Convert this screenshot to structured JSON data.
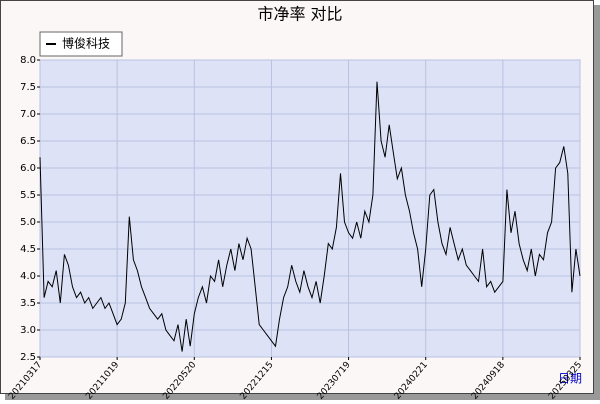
{
  "chart_data": {
    "type": "line",
    "title": "市净率  对比",
    "x_label": "日期",
    "categories": [
      "20210317",
      null,
      null,
      null,
      null,
      null,
      null,
      null,
      null,
      null,
      null,
      null,
      null,
      null,
      null,
      null,
      null,
      null,
      null,
      "20211019",
      null,
      null,
      null,
      null,
      null,
      null,
      null,
      null,
      null,
      null,
      null,
      null,
      null,
      null,
      null,
      null,
      null,
      null,
      "20220520",
      null,
      null,
      null,
      null,
      null,
      null,
      null,
      null,
      null,
      null,
      null,
      null,
      null,
      null,
      null,
      null,
      null,
      null,
      "20221215",
      null,
      null,
      null,
      null,
      null,
      null,
      null,
      null,
      null,
      null,
      null,
      null,
      null,
      null,
      null,
      null,
      null,
      null,
      "20230719",
      null,
      null,
      null,
      null,
      null,
      null,
      null,
      null,
      null,
      null,
      null,
      null,
      null,
      null,
      null,
      null,
      null,
      null,
      "20240221",
      null,
      null,
      null,
      null,
      null,
      null,
      null,
      null,
      null,
      null,
      null,
      null,
      null,
      null,
      null,
      null,
      null,
      null,
      "20240918",
      null,
      null,
      null,
      null,
      null,
      null,
      null,
      null,
      null,
      null,
      null,
      null,
      null,
      null,
      null,
      null,
      null,
      null,
      "20250325"
    ],
    "series": [
      {
        "name": "博俊科技",
        "color": "#000000",
        "values": [
          6.2,
          3.6,
          3.9,
          3.8,
          4.1,
          3.5,
          4.4,
          4.2,
          3.8,
          3.6,
          3.7,
          3.5,
          3.6,
          3.4,
          3.5,
          3.6,
          3.4,
          3.5,
          3.3,
          3.1,
          3.2,
          3.5,
          5.1,
          4.3,
          4.1,
          3.8,
          3.6,
          3.4,
          3.3,
          3.2,
          3.3,
          3.0,
          2.9,
          2.8,
          3.1,
          2.6,
          3.2,
          2.7,
          3.3,
          3.6,
          3.8,
          3.5,
          4.0,
          3.9,
          4.3,
          3.8,
          4.2,
          4.5,
          4.1,
          4.6,
          4.3,
          4.7,
          4.5,
          3.8,
          3.1,
          3.0,
          2.9,
          2.8,
          2.7,
          3.2,
          3.6,
          3.8,
          4.2,
          3.9,
          3.7,
          4.1,
          3.8,
          3.6,
          3.9,
          3.5,
          4.0,
          4.6,
          4.5,
          4.9,
          5.9,
          5.0,
          4.8,
          4.7,
          5.0,
          4.7,
          5.2,
          5.0,
          5.5,
          7.6,
          6.5,
          6.2,
          6.8,
          6.3,
          5.8,
          6.0,
          5.5,
          5.2,
          4.8,
          4.5,
          3.8,
          4.5,
          5.5,
          5.6,
          5.0,
          4.6,
          4.4,
          4.9,
          4.6,
          4.3,
          4.5,
          4.2,
          4.1,
          4.0,
          3.9,
          4.5,
          3.8,
          3.9,
          3.7,
          3.8,
          3.9,
          5.6,
          4.8,
          5.2,
          4.6,
          4.3,
          4.1,
          4.5,
          4.0,
          4.4,
          4.3,
          4.8,
          5.0,
          6.0,
          6.1,
          6.4,
          5.9,
          3.7,
          4.5,
          4.0
        ]
      }
    ],
    "ylim": [
      2.5,
      8.0
    ],
    "yticks": [
      {
        "value": 2.5,
        "label": "2.5"
      },
      {
        "value": 3,
        "label": "3.0"
      },
      {
        "value": 3.5,
        "label": "3.5"
      },
      {
        "value": 4,
        "label": "4.0"
      },
      {
        "value": 4.5,
        "label": "4.5"
      },
      {
        "value": 5,
        "label": "5.0"
      },
      {
        "value": 5.5,
        "label": "5.5"
      },
      {
        "value": 6,
        "label": "6.0"
      },
      {
        "value": 6.5,
        "label": "6.5"
      },
      {
        "value": 7,
        "label": "7.0"
      },
      {
        "value": 7.5,
        "label": "7.5"
      },
      {
        "value": 8,
        "label": "8.0"
      }
    ],
    "grid": true
  }
}
